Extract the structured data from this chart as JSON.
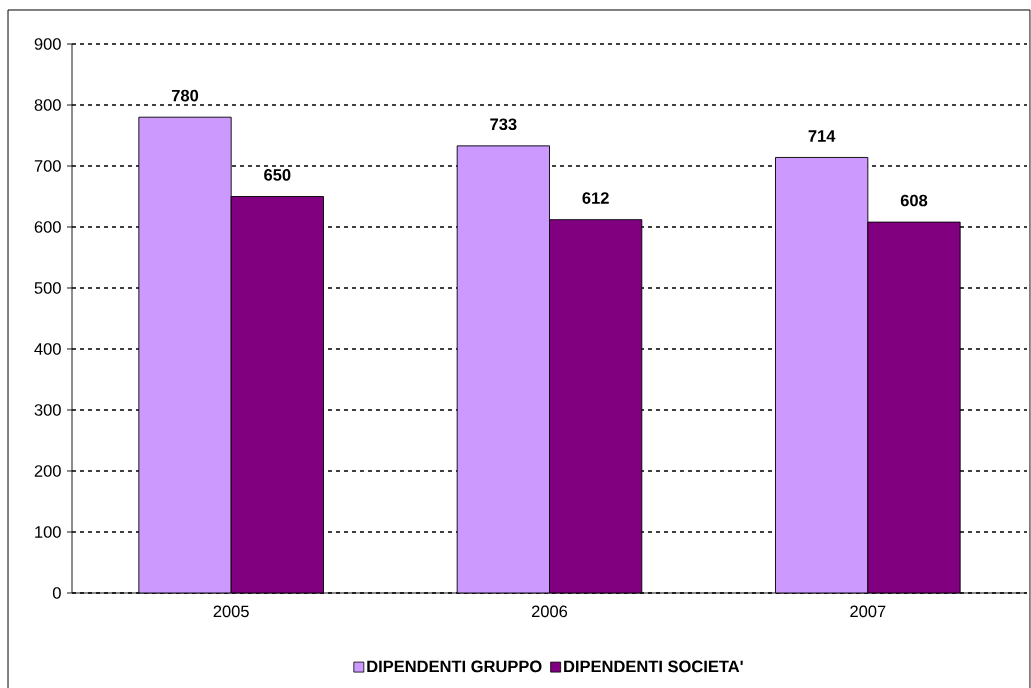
{
  "chart_data": {
    "type": "bar",
    "categories": [
      "2005",
      "2006",
      "2007"
    ],
    "series": [
      {
        "name": "DIPENDENTI GRUPPO",
        "color": "#cc99ff",
        "values": [
          780,
          733,
          714
        ]
      },
      {
        "name": "DIPENDENTI SOCIETA'",
        "color": "#800080",
        "values": [
          650,
          612,
          608
        ]
      }
    ],
    "ylim": [
      0,
      900
    ],
    "yticks": [
      0,
      100,
      200,
      300,
      400,
      500,
      600,
      700,
      800,
      900
    ],
    "grid": "y",
    "legend": "bottom",
    "data_labels": true
  }
}
